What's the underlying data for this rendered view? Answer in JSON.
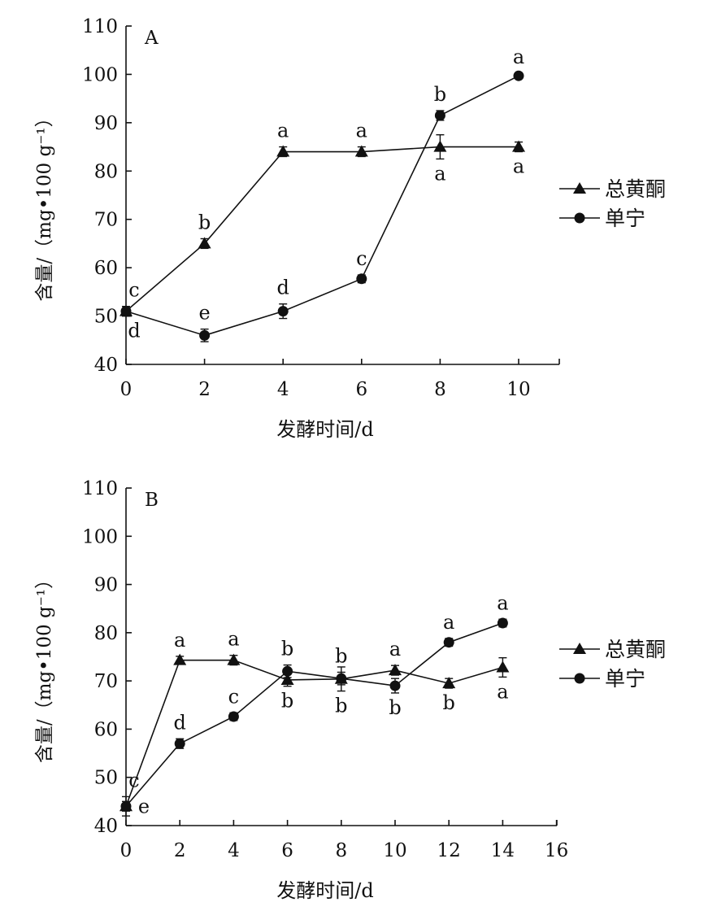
{
  "chart_data": [
    {
      "type": "line",
      "panel_label": "A",
      "xlabel": "发酵时间/d",
      "ylabel": "含量/（mg•100 g⁻¹）",
      "xlim": [
        0,
        10
      ],
      "ylim": [
        40,
        110
      ],
      "xticks": [
        0,
        2,
        4,
        6,
        8,
        10
      ],
      "yticks": [
        40,
        50,
        60,
        70,
        80,
        90,
        100,
        110
      ],
      "grid": false,
      "legend_position": "right",
      "series": [
        {
          "name": "总黄酮",
          "marker": "triangle",
          "x": [
            0,
            2,
            4,
            6,
            8,
            10
          ],
          "values": [
            51,
            65,
            84,
            84,
            85,
            85
          ],
          "errors": [
            1,
            1,
            1,
            1,
            2.5,
            1
          ],
          "letters": [
            "c",
            "b",
            "a",
            "a",
            "a",
            "a"
          ],
          "letter_side": [
            "above",
            "above",
            "above",
            "above",
            "below",
            "below"
          ]
        },
        {
          "name": "单宁",
          "marker": "circle",
          "x": [
            0,
            2,
            4,
            6,
            8,
            10
          ],
          "values": [
            51,
            46,
            51,
            57.7,
            91.5,
            99.7
          ],
          "errors": [
            1,
            1.3,
            1.5,
            0.8,
            1,
            0.5
          ],
          "letters": [
            "d",
            "e",
            "d",
            "c",
            "b",
            "a"
          ],
          "letter_side": [
            "below",
            "above",
            "above",
            "above",
            "above",
            "above"
          ]
        }
      ]
    },
    {
      "type": "line",
      "panel_label": "B",
      "xlabel": "发酵时间/d",
      "ylabel": "含量/（mg•100 g⁻¹）",
      "xlim": [
        0,
        16
      ],
      "ylim": [
        40,
        110
      ],
      "xticks": [
        0,
        2,
        4,
        6,
        8,
        10,
        12,
        14,
        16
      ],
      "yticks": [
        40,
        50,
        60,
        70,
        80,
        90,
        100,
        110
      ],
      "grid": false,
      "legend_position": "right",
      "series": [
        {
          "name": "总黄酮",
          "marker": "triangle",
          "x": [
            0,
            2,
            4,
            6,
            8,
            10,
            12,
            14
          ],
          "values": [
            44,
            74.3,
            74.3,
            70.2,
            70.4,
            72.2,
            69.5,
            72.8
          ],
          "errors": [
            2,
            0.8,
            1,
            1.3,
            2.5,
            1,
            1,
            2
          ],
          "letters": [
            "c",
            "a",
            "a",
            "b",
            "b",
            "a",
            "b",
            "a"
          ],
          "letter_side": [
            "above",
            "above",
            "above",
            "below",
            "below",
            "above",
            "below",
            "below"
          ]
        },
        {
          "name": "单宁",
          "marker": "circle",
          "x": [
            0,
            2,
            4,
            6,
            8,
            10,
            12,
            14
          ],
          "values": [
            44,
            57,
            62.6,
            72,
            70.5,
            69,
            78,
            82
          ],
          "errors": [
            1,
            1,
            0.8,
            1.3,
            1.3,
            1.5,
            0.8,
            0.8
          ],
          "letters": [
            "e",
            "d",
            "c",
            "b",
            "b",
            "b",
            "a",
            "a"
          ],
          "letter_side": [
            "right",
            "above",
            "above",
            "above",
            "above",
            "below",
            "above",
            "above"
          ]
        }
      ]
    }
  ]
}
